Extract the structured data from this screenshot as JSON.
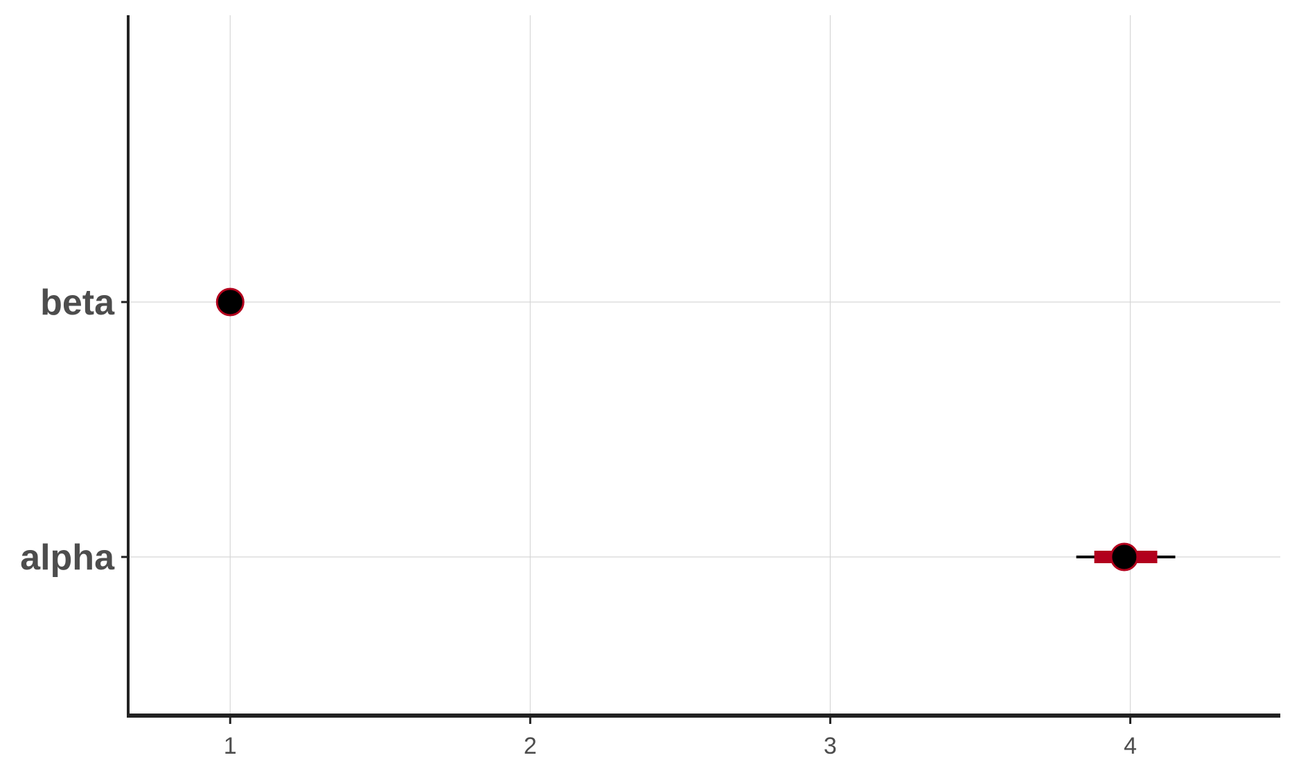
{
  "chart_data": {
    "type": "interval",
    "title": "",
    "xlabel": "",
    "ylabel": "",
    "xlim": [
      0.66,
      4.5
    ],
    "x_ticks": [
      1,
      2,
      3,
      4
    ],
    "x_tick_labels": [
      "1",
      "2",
      "3",
      "4"
    ],
    "grid": true,
    "legend": "none",
    "categories": [
      "beta",
      "alpha"
    ],
    "points": [
      {
        "parameter": "beta",
        "estimate": 1.0,
        "inner": [
          1.0,
          1.0
        ],
        "outer": [
          1.0,
          1.0
        ]
      },
      {
        "parameter": "alpha",
        "estimate": 3.98,
        "inner": [
          3.88,
          4.09
        ],
        "outer": [
          3.82,
          4.15
        ]
      }
    ],
    "colors": {
      "point_fill": "#000000",
      "point_outline": "#b2001d",
      "inner_interval": "#b2001d",
      "outer_interval": "#000000",
      "axis": "#222222",
      "grid": "#d6d6d6",
      "tick_text": "#4d4d4d"
    }
  }
}
